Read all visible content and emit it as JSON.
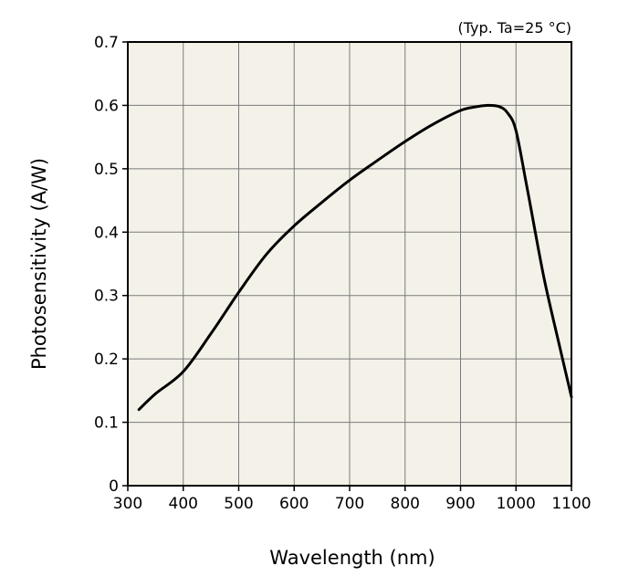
{
  "chart_data": {
    "type": "line",
    "title": "",
    "annotation": "(Typ. Ta=25 °C)",
    "xlabel": "Wavelength (nm)",
    "ylabel": "Photosensitivity (A/W)",
    "xlim": [
      300,
      1100
    ],
    "ylim": [
      0,
      0.7
    ],
    "xticks": [
      300,
      400,
      500,
      600,
      700,
      800,
      900,
      1000,
      1100
    ],
    "xtick_labels": [
      "300",
      "400",
      "500",
      "600",
      "700",
      "800",
      "900",
      "1000",
      "1100"
    ],
    "yticks": [
      0,
      0.1,
      0.2,
      0.3,
      0.4,
      0.5,
      0.6,
      0.7
    ],
    "ytick_labels": [
      "0",
      "0.1",
      "0.2",
      "0.3",
      "0.4",
      "0.5",
      "0.6",
      "0.7"
    ],
    "grid": true,
    "colors": {
      "plot_background": "#f4f2e8",
      "grid": "#7a7a7a",
      "line": "#000000"
    },
    "series": [
      {
        "name": "Photosensitivity",
        "x": [
          320,
          350,
          400,
          450,
          500,
          550,
          600,
          650,
          700,
          750,
          800,
          850,
          900,
          930,
          950,
          970,
          985,
          1000,
          1020,
          1050,
          1080,
          1100
        ],
        "y": [
          0.12,
          0.145,
          0.18,
          0.24,
          0.305,
          0.365,
          0.41,
          0.447,
          0.482,
          0.513,
          0.543,
          0.57,
          0.592,
          0.598,
          0.6,
          0.598,
          0.588,
          0.56,
          0.47,
          0.33,
          0.215,
          0.14
        ]
      }
    ]
  }
}
